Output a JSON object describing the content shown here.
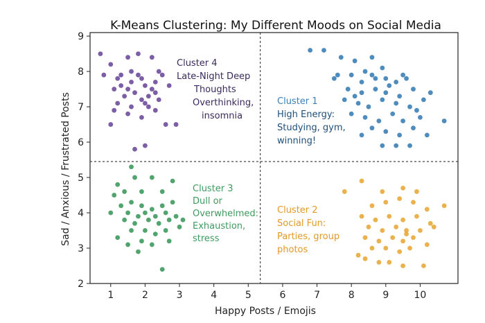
{
  "chart_data": {
    "type": "scatter",
    "title": "K-Means Clustering: My Different Moods on Social Media",
    "xlabel": "Happy Posts / Emojis",
    "ylabel": "Sad / Anxious / Frustrated Posts",
    "xlim": [
      0.4,
      11.1
    ],
    "ylim": [
      2,
      9.1
    ],
    "xticks": [
      1,
      2,
      3,
      4,
      5,
      6,
      7,
      8,
      9,
      10
    ],
    "yticks": [
      2,
      3,
      4,
      5,
      6,
      7,
      8,
      9
    ],
    "dividers": {
      "x": 5.35,
      "y": 5.45
    },
    "series": [
      {
        "name": "Cluster 4",
        "color": "#6d4c9c",
        "annotation": {
          "title": "Cluster 4",
          "lines": [
            "Late-Night Deep",
            "Thoughts",
            "Overthinking,",
            "insomnia"
          ]
        },
        "points": [
          [
            0.7,
            8.5
          ],
          [
            0.8,
            7.9
          ],
          [
            1.0,
            8.2
          ],
          [
            1.2,
            7.8
          ],
          [
            1.5,
            8.4
          ],
          [
            1.8,
            8.5
          ],
          [
            2.2,
            8.4
          ],
          [
            1.1,
            7.5
          ],
          [
            1.3,
            7.6
          ],
          [
            1.6,
            7.7
          ],
          [
            1.9,
            7.8
          ],
          [
            2.0,
            7.6
          ],
          [
            2.3,
            7.7
          ],
          [
            2.5,
            7.9
          ],
          [
            1.4,
            7.3
          ],
          [
            1.7,
            7.4
          ],
          [
            2.1,
            7.3
          ],
          [
            2.4,
            7.2
          ],
          [
            1.2,
            7.1
          ],
          [
            1.6,
            7.0
          ],
          [
            2.0,
            7.1
          ],
          [
            2.3,
            6.9
          ],
          [
            1.5,
            6.8
          ],
          [
            1.9,
            6.7
          ],
          [
            2.6,
            6.5
          ],
          [
            1.0,
            6.5
          ],
          [
            2.0,
            5.9
          ],
          [
            1.7,
            5.8
          ],
          [
            2.9,
            6.5
          ],
          [
            1.8,
            7.9
          ],
          [
            2.2,
            7.5
          ],
          [
            1.3,
            7.9
          ],
          [
            1.6,
            8.0
          ],
          [
            2.4,
            8.0
          ],
          [
            1.9,
            7.2
          ],
          [
            2.7,
            7.6
          ],
          [
            1.1,
            6.9
          ],
          [
            2.1,
            7.0
          ],
          [
            1.5,
            7.5
          ],
          [
            2.3,
            7.4
          ]
        ]
      },
      {
        "name": "Cluster 1",
        "color": "#3b7fb6",
        "annotation": {
          "title": "Cluster 1",
          "lines": [
            "High Energy:",
            "Studying, gym,",
            "winning!"
          ]
        },
        "points": [
          [
            6.8,
            8.6
          ],
          [
            7.2,
            8.6
          ],
          [
            7.7,
            8.4
          ],
          [
            8.1,
            8.3
          ],
          [
            8.6,
            8.4
          ],
          [
            8.9,
            8.1
          ],
          [
            7.5,
            7.8
          ],
          [
            8.0,
            7.9
          ],
          [
            8.3,
            7.7
          ],
          [
            8.6,
            7.9
          ],
          [
            9.0,
            7.8
          ],
          [
            9.3,
            7.7
          ],
          [
            9.6,
            7.8
          ],
          [
            7.9,
            7.5
          ],
          [
            8.3,
            7.4
          ],
          [
            8.7,
            7.5
          ],
          [
            9.0,
            7.4
          ],
          [
            9.4,
            7.3
          ],
          [
            9.8,
            7.5
          ],
          [
            10.3,
            7.4
          ],
          [
            7.8,
            7.2
          ],
          [
            8.2,
            7.1
          ],
          [
            8.5,
            7.0
          ],
          [
            8.9,
            7.2
          ],
          [
            9.3,
            7.1
          ],
          [
            9.7,
            7.0
          ],
          [
            10.1,
            7.2
          ],
          [
            8.0,
            6.8
          ],
          [
            8.4,
            6.7
          ],
          [
            8.8,
            6.6
          ],
          [
            9.2,
            6.8
          ],
          [
            9.5,
            6.6
          ],
          [
            10.0,
            6.7
          ],
          [
            10.7,
            6.6
          ],
          [
            8.6,
            6.4
          ],
          [
            9.0,
            6.3
          ],
          [
            9.4,
            6.2
          ],
          [
            9.8,
            6.4
          ],
          [
            8.9,
            5.9
          ],
          [
            9.3,
            5.9
          ],
          [
            9.7,
            5.9
          ],
          [
            8.3,
            6.2
          ],
          [
            8.7,
            7.8
          ],
          [
            9.1,
            7.6
          ],
          [
            7.6,
            7.9
          ],
          [
            8.4,
            8.0
          ],
          [
            9.5,
            7.9
          ],
          [
            8.1,
            7.3
          ],
          [
            9.9,
            6.9
          ],
          [
            10.2,
            6.2
          ]
        ]
      },
      {
        "name": "Cluster 3",
        "color": "#3f9a5f",
        "annotation": {
          "title": "Cluster 3",
          "lines": [
            "Dull or",
            "Overwhelmed:",
            "Exhaustion,",
            "stress"
          ]
        },
        "points": [
          [
            1.6,
            5.3
          ],
          [
            1.2,
            4.8
          ],
          [
            1.7,
            5.0
          ],
          [
            2.2,
            5.0
          ],
          [
            2.8,
            4.9
          ],
          [
            1.4,
            4.6
          ],
          [
            1.9,
            4.6
          ],
          [
            2.5,
            4.6
          ],
          [
            1.0,
            4.0
          ],
          [
            1.3,
            4.2
          ],
          [
            1.6,
            4.3
          ],
          [
            1.9,
            4.2
          ],
          [
            2.2,
            4.1
          ],
          [
            2.5,
            4.2
          ],
          [
            2.8,
            4.3
          ],
          [
            1.5,
            4.0
          ],
          [
            1.8,
            3.9
          ],
          [
            2.0,
            4.0
          ],
          [
            2.3,
            3.9
          ],
          [
            2.6,
            4.0
          ],
          [
            2.9,
            3.9
          ],
          [
            1.4,
            3.8
          ],
          [
            1.7,
            3.7
          ],
          [
            2.1,
            3.8
          ],
          [
            2.4,
            3.7
          ],
          [
            2.7,
            3.8
          ],
          [
            3.0,
            3.6
          ],
          [
            1.2,
            3.3
          ],
          [
            1.6,
            3.5
          ],
          [
            2.0,
            3.5
          ],
          [
            2.3,
            3.4
          ],
          [
            2.6,
            3.5
          ],
          [
            1.5,
            3.1
          ],
          [
            1.9,
            3.2
          ],
          [
            2.2,
            3.1
          ],
          [
            2.7,
            3.2
          ],
          [
            1.8,
            2.9
          ],
          [
            2.5,
            2.4
          ],
          [
            1.1,
            4.5
          ],
          [
            3.1,
            3.8
          ]
        ]
      },
      {
        "name": "Cluster 2",
        "color": "#e8a838",
        "annotation": {
          "title": "Cluster 2",
          "lines": [
            "Social Fun:",
            "Parties, group",
            "photos"
          ]
        },
        "points": [
          [
            7.8,
            4.6
          ],
          [
            8.3,
            4.9
          ],
          [
            8.9,
            4.6
          ],
          [
            9.5,
            4.7
          ],
          [
            9.9,
            4.6
          ],
          [
            8.6,
            4.2
          ],
          [
            9.0,
            4.3
          ],
          [
            9.4,
            4.4
          ],
          [
            9.8,
            4.3
          ],
          [
            10.2,
            4.1
          ],
          [
            10.7,
            4.2
          ],
          [
            8.3,
            3.9
          ],
          [
            8.7,
            3.8
          ],
          [
            9.1,
            3.9
          ],
          [
            9.5,
            3.8
          ],
          [
            9.9,
            3.9
          ],
          [
            10.3,
            3.7
          ],
          [
            8.5,
            3.6
          ],
          [
            8.9,
            3.5
          ],
          [
            9.3,
            3.6
          ],
          [
            9.6,
            3.5
          ],
          [
            10.0,
            3.5
          ],
          [
            10.4,
            3.6
          ],
          [
            8.4,
            3.3
          ],
          [
            8.8,
            3.2
          ],
          [
            9.2,
            3.3
          ],
          [
            9.5,
            3.2
          ],
          [
            9.8,
            3.3
          ],
          [
            10.2,
            3.1
          ],
          [
            8.6,
            3.0
          ],
          [
            9.0,
            3.0
          ],
          [
            9.4,
            2.9
          ],
          [
            9.7,
            3.0
          ],
          [
            8.4,
            2.7
          ],
          [
            8.8,
            2.6
          ],
          [
            9.1,
            2.6
          ],
          [
            9.5,
            2.5
          ],
          [
            10.1,
            2.5
          ],
          [
            8.2,
            2.8
          ],
          [
            9.6,
            3.4
          ]
        ]
      }
    ]
  }
}
